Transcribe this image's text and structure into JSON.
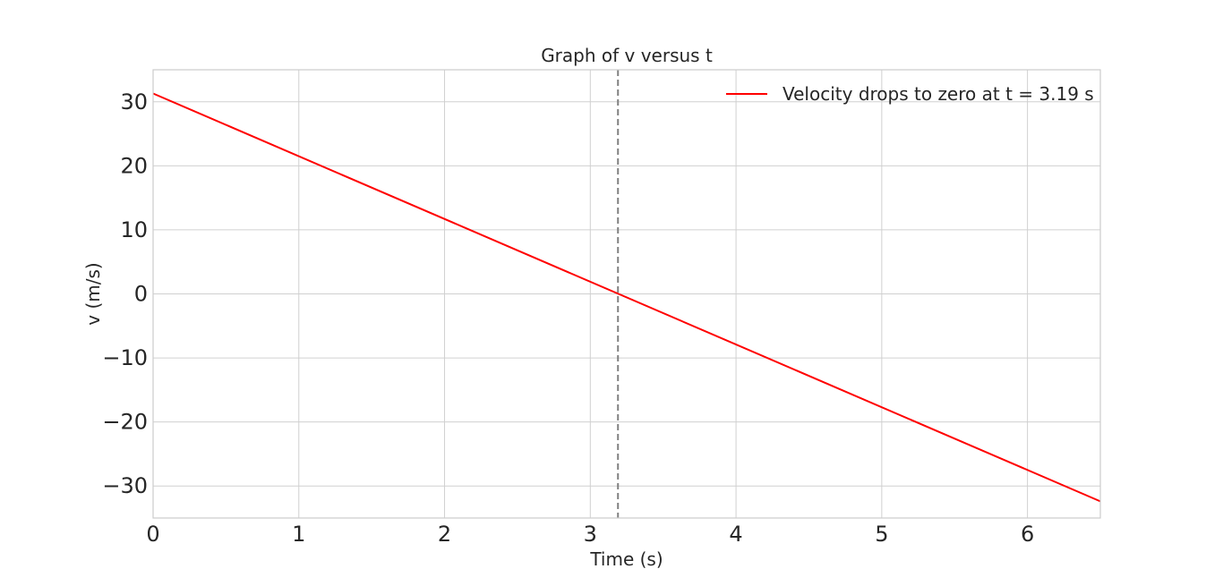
{
  "chart_data": {
    "type": "line",
    "title": "Graph of v versus t",
    "xlabel": "Time (s)",
    "ylabel": "v (m/s)",
    "xlim": [
      0,
      6.5
    ],
    "ylim": [
      -35,
      35
    ],
    "xticks": [
      0,
      1,
      2,
      3,
      4,
      5,
      6
    ],
    "xtick_labels": [
      "0",
      "1",
      "2",
      "3",
      "4",
      "5",
      "6"
    ],
    "yticks": [
      30,
      20,
      10,
      0,
      -10,
      -20,
      -30
    ],
    "ytick_labels": [
      "30",
      "20",
      "10",
      "0",
      "−10",
      "−20",
      "−30"
    ],
    "grid": true,
    "legend_position": "top-right",
    "series": [
      {
        "name": "Velocity drops to zero at t = 3.19 s",
        "color": "#ff0000",
        "style": "solid",
        "x": [
          0,
          6.5
        ],
        "y": [
          31.3,
          -32.4
        ]
      }
    ],
    "annotations": [
      {
        "type": "vertical-line",
        "x": 3.19,
        "color": "#808080",
        "style": "dashed"
      }
    ]
  }
}
